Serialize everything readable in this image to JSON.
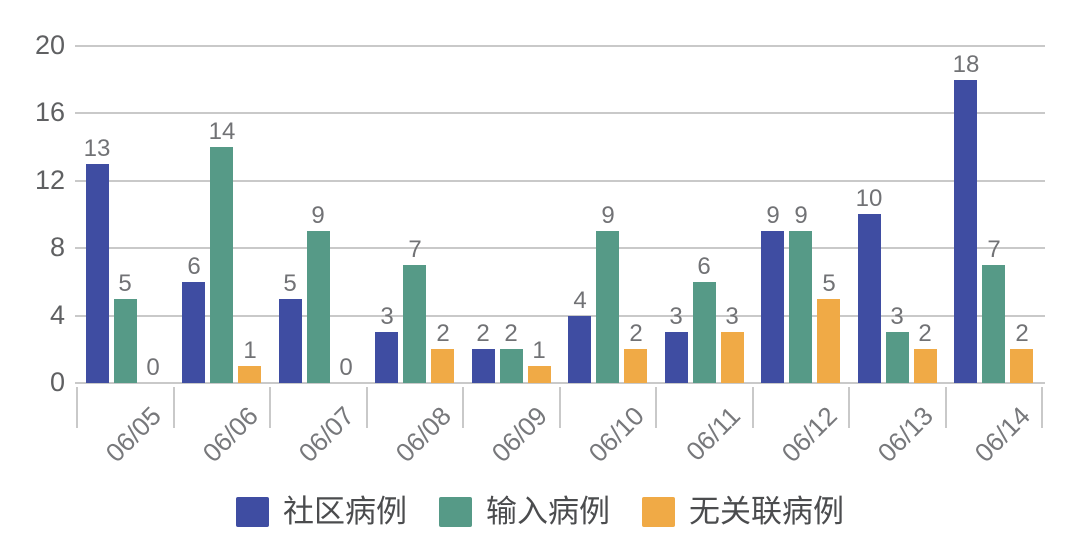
{
  "chart_data": {
    "type": "bar",
    "title": "",
    "xlabel": "",
    "ylabel": "",
    "categories": [
      "06/05",
      "06/06",
      "06/07",
      "06/08",
      "06/09",
      "06/10",
      "06/11",
      "06/12",
      "06/13",
      "06/14"
    ],
    "series": [
      {
        "name": "社区病例",
        "color": "#3f4da2",
        "values": [
          13,
          6,
          5,
          3,
          2,
          4,
          3,
          9,
          10,
          18
        ]
      },
      {
        "name": "输入病例",
        "color": "#569a87",
        "values": [
          5,
          14,
          9,
          7,
          2,
          9,
          6,
          9,
          3,
          7
        ]
      },
      {
        "name": "无关联病例",
        "color": "#f0aa46",
        "values": [
          0,
          1,
          0,
          2,
          1,
          2,
          3,
          5,
          2,
          2
        ]
      }
    ],
    "ylim": [
      0,
      20
    ],
    "yticks": [
      0,
      4,
      8,
      12,
      16,
      20
    ],
    "grid": true,
    "gridline_color": "#c9c9c9",
    "value_label_color": "#717275",
    "axis_label_color": "#77787b",
    "legend_position": "bottom",
    "x_label_rotation_deg": 45
  }
}
